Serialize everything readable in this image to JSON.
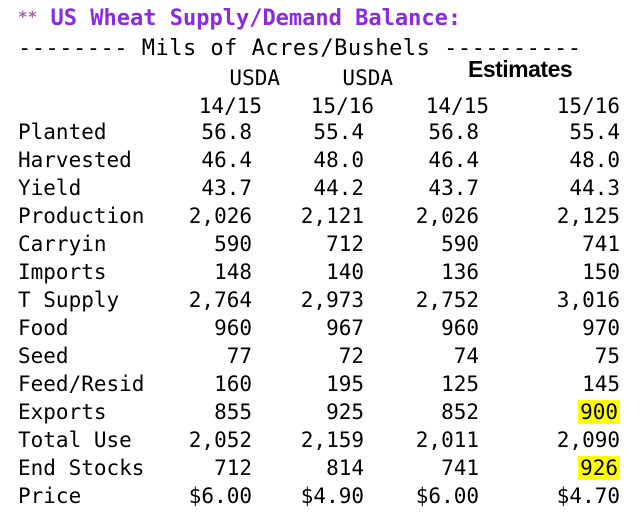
{
  "title_stars": "**",
  "title": "US Wheat Supply/Demand Balance:",
  "subtitle": "-------- Mils of Acres/Bushels ----------",
  "estimates_label": "Estimates",
  "headers": {
    "top": [
      "USDA",
      "USDA"
    ],
    "years": [
      "14/15",
      "15/16",
      "14/15",
      "15/16"
    ]
  },
  "highlight_color": "#ffff00",
  "title_color": "#8a2be2",
  "rows": [
    {
      "label": "Planted",
      "values": [
        "56.8",
        "55.4",
        "56.8",
        "55.4"
      ],
      "highlight": [
        false,
        false,
        false,
        false
      ]
    },
    {
      "label": "Harvested",
      "values": [
        "46.4",
        "48.0",
        "46.4",
        "48.0"
      ],
      "highlight": [
        false,
        false,
        false,
        false
      ]
    },
    {
      "label": "Yield",
      "values": [
        "43.7",
        "44.2",
        "43.7",
        "44.3"
      ],
      "highlight": [
        false,
        false,
        false,
        false
      ]
    },
    {
      "label": "Production",
      "values": [
        "2,026",
        "2,121",
        "2,026",
        "2,125"
      ],
      "highlight": [
        false,
        false,
        false,
        false
      ]
    },
    {
      "label": "Carryin",
      "values": [
        "590",
        "712",
        "590",
        "741"
      ],
      "highlight": [
        false,
        false,
        false,
        false
      ]
    },
    {
      "label": "Imports",
      "values": [
        "148",
        "140",
        "136",
        "150"
      ],
      "highlight": [
        false,
        false,
        false,
        false
      ]
    },
    {
      "label": "T Supply",
      "values": [
        "2,764",
        "2,973",
        "2,752",
        "3,016"
      ],
      "highlight": [
        false,
        false,
        false,
        false
      ]
    },
    {
      "label": "Food",
      "values": [
        "960",
        "967",
        "960",
        "970"
      ],
      "highlight": [
        false,
        false,
        false,
        false
      ]
    },
    {
      "label": "Seed",
      "values": [
        "77",
        "72",
        "74",
        "75"
      ],
      "highlight": [
        false,
        false,
        false,
        false
      ]
    },
    {
      "label": "Feed/Resid",
      "values": [
        "160",
        "195",
        "125",
        "145"
      ],
      "highlight": [
        false,
        false,
        false,
        false
      ]
    },
    {
      "label": "Exports",
      "values": [
        "855",
        "925",
        "852",
        "900"
      ],
      "highlight": [
        false,
        false,
        false,
        true
      ]
    },
    {
      "label": "Total Use",
      "values": [
        "2,052",
        "2,159",
        "2,011",
        "2,090"
      ],
      "highlight": [
        false,
        false,
        false,
        false
      ]
    },
    {
      "label": "End Stocks",
      "values": [
        "712",
        "814",
        "741",
        "926"
      ],
      "highlight": [
        false,
        false,
        false,
        true
      ]
    },
    {
      "label": "Price",
      "values": [
        "$6.00",
        "$4.90",
        "$6.00",
        "$4.70"
      ],
      "highlight": [
        false,
        false,
        false,
        false
      ]
    }
  ]
}
